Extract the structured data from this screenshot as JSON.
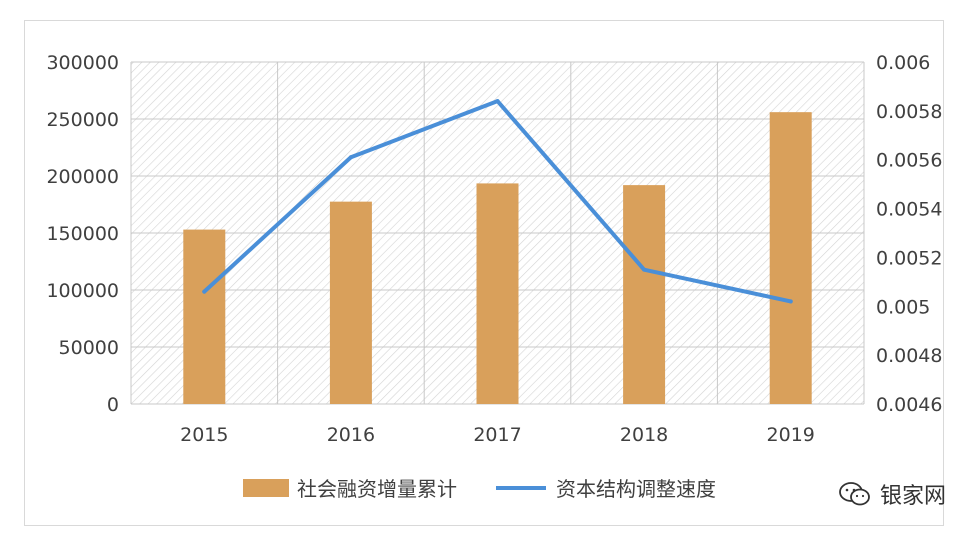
{
  "chart_data": {
    "type": "bar+line",
    "categories": [
      "2015",
      "2016",
      "2017",
      "2018",
      "2019"
    ],
    "series": [
      {
        "name": "社会融资增量累计",
        "type": "bar",
        "axis": "left",
        "values": [
          153000,
          177500,
          193500,
          192000,
          256000
        ],
        "color": "#d9a05b"
      },
      {
        "name": "资本结构调整速度",
        "type": "line",
        "axis": "right",
        "values": [
          0.00506,
          0.00561,
          0.00584,
          0.00515,
          0.00502
        ],
        "color": "#4a8fd8"
      }
    ],
    "y_left": {
      "ylim": [
        0,
        300000
      ],
      "ticks": [
        "0",
        "50000",
        "100000",
        "150000",
        "200000",
        "250000",
        "300000"
      ]
    },
    "y_right": {
      "ylim": [
        0.0046,
        0.006
      ],
      "ticks": [
        "0.0046",
        "0.0048",
        "0.005",
        "0.0052",
        "0.0054",
        "0.0056",
        "0.0058",
        "0.006"
      ]
    },
    "grid": true,
    "plot_pattern": "diagonal-hatch",
    "legend": "bottom-center"
  },
  "watermark": {
    "text": "银家网",
    "icon": "wechat-logo-icon"
  }
}
